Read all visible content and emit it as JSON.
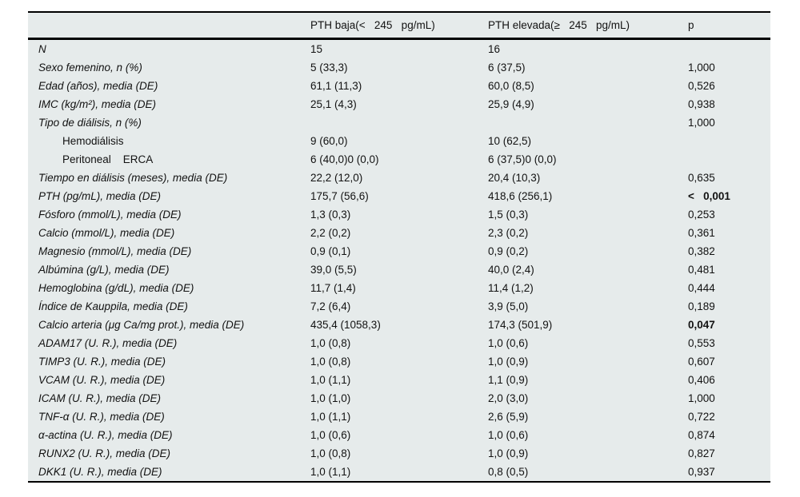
{
  "colors": {
    "page_bg": "#ffffff",
    "table_bg": "#e6ebeb",
    "rule": "#000000",
    "text": "#121212"
  },
  "table": {
    "columns": [
      "",
      "PTH baja(<   245   pg/mL)",
      "PTH elevada(≥   245   pg/mL)",
      "p"
    ],
    "rows": [
      {
        "label": "N",
        "italic": true,
        "indent": false,
        "v1": "15",
        "v2": "16",
        "p": "",
        "p_bold": false
      },
      {
        "label": "Sexo femenino, n (%)",
        "italic": true,
        "indent": false,
        "v1": "5 (33,3)",
        "v2": "6 (37,5)",
        "p": "1,000",
        "p_bold": false
      },
      {
        "label": "Edad (años), media (DE)",
        "italic": true,
        "indent": false,
        "v1": "61,1 (11,3)",
        "v2": "60,0 (8,5)",
        "p": "0,526",
        "p_bold": false
      },
      {
        "label": "IMC (kg/m²), media (DE)",
        "italic": true,
        "indent": false,
        "v1": "25,1 (4,3)",
        "v2": "25,9 (4,9)",
        "p": "0,938",
        "p_bold": false
      },
      {
        "label": "Tipo de diálisis, n (%)",
        "italic": true,
        "indent": false,
        "v1": "",
        "v2": "",
        "p": "1,000",
        "p_bold": false
      },
      {
        "label": "Hemodiálisis",
        "italic": false,
        "indent": true,
        "v1": "9 (60,0)",
        "v2": "10 (62,5)",
        "p": "",
        "p_bold": false
      },
      {
        "label": "Peritoneal    ERCA",
        "italic": false,
        "indent": true,
        "v1": "6 (40,0)0 (0,0)",
        "v2": "6 (37,5)0 (0,0)",
        "p": "",
        "p_bold": false
      },
      {
        "label": "Tiempo en diálisis (meses), media (DE)",
        "italic": true,
        "indent": false,
        "v1": "22,2 (12,0)",
        "v2": "20,4 (10,3)",
        "p": "0,635",
        "p_bold": false
      },
      {
        "label": "PTH (pg/mL), media (DE)",
        "italic": true,
        "indent": false,
        "v1": "175,7 (56,6)",
        "v2": "418,6 (256,1)",
        "p": "<   0,001",
        "p_bold": true
      },
      {
        "label": "Fósforo (mmol/L), media (DE)",
        "italic": true,
        "indent": false,
        "v1": "1,3 (0,3)",
        "v2": "1,5 (0,3)",
        "p": "0,253",
        "p_bold": false
      },
      {
        "label": "Calcio (mmol/L), media (DE)",
        "italic": true,
        "indent": false,
        "v1": "2,2 (0,2)",
        "v2": "2,3 (0,2)",
        "p": "0,361",
        "p_bold": false
      },
      {
        "label": "Magnesio (mmol/L), media (DE)",
        "italic": true,
        "indent": false,
        "v1": "0,9 (0,1)",
        "v2": "0,9 (0,2)",
        "p": "0,382",
        "p_bold": false
      },
      {
        "label": "Albúmina (g/L), media (DE)",
        "italic": true,
        "indent": false,
        "v1": "39,0 (5,5)",
        "v2": "40,0 (2,4)",
        "p": "0,481",
        "p_bold": false
      },
      {
        "label": "Hemoglobina (g/dL), media (DE)",
        "italic": true,
        "indent": false,
        "v1": "11,7 (1,4)",
        "v2": "11,4 (1,2)",
        "p": "0,444",
        "p_bold": false
      },
      {
        "label": "Índice de Kauppila, media (DE)",
        "italic": true,
        "indent": false,
        "v1": "7,2 (6,4)",
        "v2": "3,9 (5,0)",
        "p": "0,189",
        "p_bold": false
      },
      {
        "label": "Calcio arteria (μg Ca/mg prot.), media (DE)",
        "italic": true,
        "indent": false,
        "v1": "435,4 (1058,3)",
        "v2": "174,3 (501,9)",
        "p": "0,047",
        "p_bold": true
      },
      {
        "label": "ADAM17 (U. R.), media (DE)",
        "italic": true,
        "indent": false,
        "v1": "1,0 (0,8)",
        "v2": "1,0 (0,6)",
        "p": "0,553",
        "p_bold": false
      },
      {
        "label": "TIMP3 (U. R.), media (DE)",
        "italic": true,
        "indent": false,
        "v1": "1,0 (0,8)",
        "v2": "1,0 (0,9)",
        "p": "0,607",
        "p_bold": false
      },
      {
        "label": "VCAM (U. R.), media (DE)",
        "italic": true,
        "indent": false,
        "v1": "1,0 (1,1)",
        "v2": "1,1 (0,9)",
        "p": "0,406",
        "p_bold": false
      },
      {
        "label": "ICAM (U. R.), media (DE)",
        "italic": true,
        "indent": false,
        "v1": "1,0 (1,0)",
        "v2": "2,0 (3,0)",
        "p": "1,000",
        "p_bold": false
      },
      {
        "label": "TNF-α (U. R.), media (DE)",
        "italic": true,
        "indent": false,
        "v1": "1,0 (1,1)",
        "v2": "2,6 (5,9)",
        "p": "0,722",
        "p_bold": false
      },
      {
        "label": "α-actina (U. R.), media (DE)",
        "italic": true,
        "indent": false,
        "v1": "1,0 (0,6)",
        "v2": "1,0 (0,6)",
        "p": "0,874",
        "p_bold": false
      },
      {
        "label": "RUNX2 (U. R.), media (DE)",
        "italic": true,
        "indent": false,
        "v1": "1,0 (0,8)",
        "v2": "1,0 (0,9)",
        "p": "0,827",
        "p_bold": false
      },
      {
        "label": "DKK1 (U. R.), media (DE)",
        "italic": true,
        "indent": false,
        "v1": "1,0 (1,1)",
        "v2": "0,8 (0,5)",
        "p": "0,937",
        "p_bold": false
      }
    ]
  }
}
